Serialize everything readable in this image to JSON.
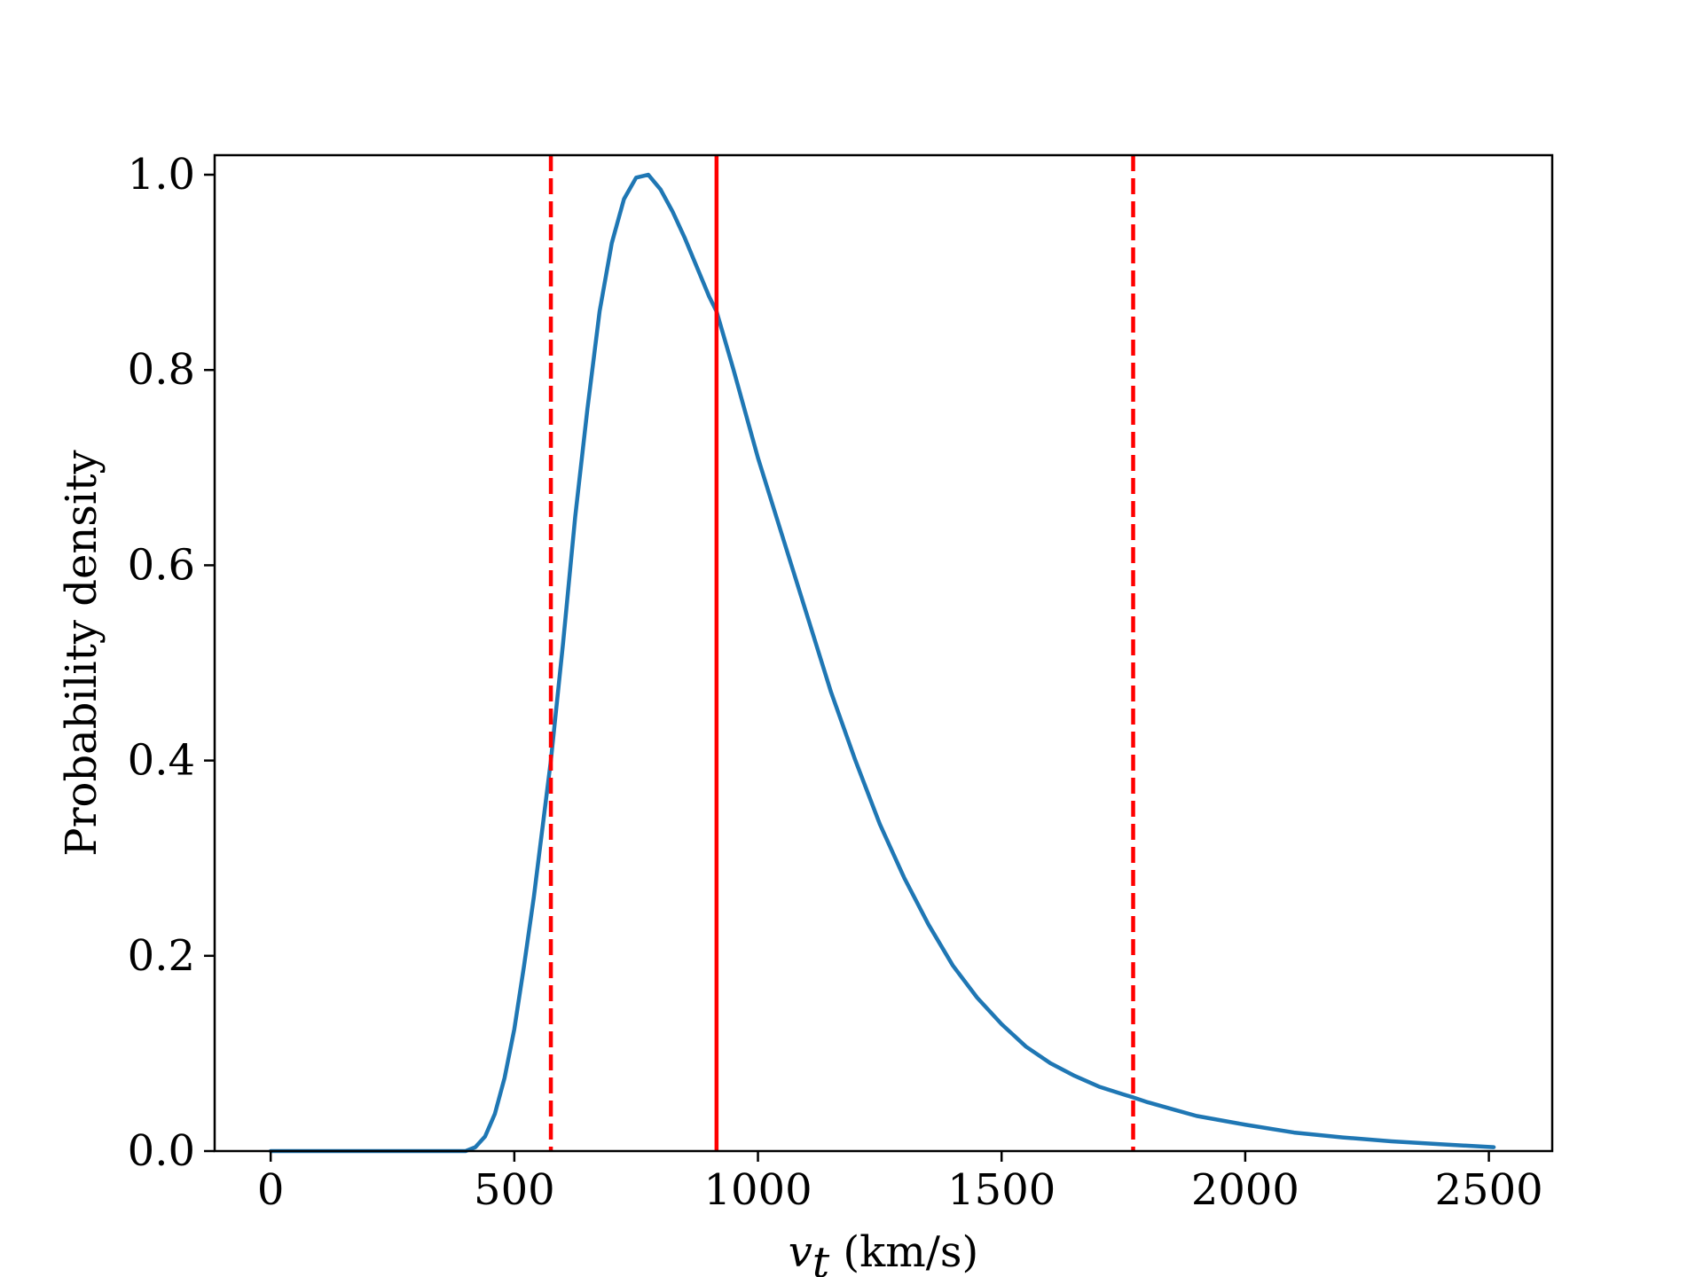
{
  "chart_data": {
    "type": "line",
    "title": "",
    "xlabel_symbol": "v",
    "xlabel_subscript": "t",
    "xlabel_units": " (km/s)",
    "ylabel": "Probability density",
    "xlim": [
      -115,
      2630
    ],
    "ylim": [
      0.0,
      1.02
    ],
    "xticks": [
      0,
      500,
      1000,
      1500,
      2000,
      2500
    ],
    "yticks": [
      0.0,
      0.2,
      0.4,
      0.6,
      0.8,
      1.0
    ],
    "xtick_labels": [
      "0",
      "500",
      "1000",
      "1500",
      "2000",
      "2500"
    ],
    "ytick_labels": [
      "0.0",
      "0.2",
      "0.4",
      "0.6",
      "0.8",
      "1.0"
    ],
    "grid": false,
    "series": [
      {
        "color": "#1f77b4",
        "x": [
          0,
          100,
          200,
          300,
          350,
          400,
          420,
          440,
          460,
          480,
          500,
          520,
          540,
          560,
          575,
          600,
          625,
          650,
          675,
          700,
          725,
          750,
          775,
          800,
          825,
          850,
          875,
          900,
          915,
          950,
          1000,
          1050,
          1100,
          1150,
          1200,
          1250,
          1300,
          1350,
          1400,
          1450,
          1500,
          1550,
          1600,
          1650,
          1700,
          1750,
          1770,
          1800,
          1850,
          1900,
          2000,
          2100,
          2200,
          2300,
          2400,
          2510
        ],
        "y": [
          0.0,
          0.0,
          0.0,
          0.0,
          0.0,
          0.0,
          0.004,
          0.015,
          0.038,
          0.075,
          0.125,
          0.19,
          0.26,
          0.34,
          0.4,
          0.52,
          0.65,
          0.76,
          0.86,
          0.93,
          0.975,
          0.997,
          1.0,
          0.985,
          0.962,
          0.935,
          0.905,
          0.875,
          0.86,
          0.8,
          0.71,
          0.63,
          0.55,
          0.47,
          0.4,
          0.335,
          0.28,
          0.232,
          0.19,
          0.157,
          0.13,
          0.107,
          0.09,
          0.077,
          0.066,
          0.058,
          0.055,
          0.05,
          0.043,
          0.036,
          0.027,
          0.019,
          0.014,
          0.01,
          0.007,
          0.004
        ]
      }
    ],
    "vlines": [
      {
        "x": 575,
        "style": "dashed",
        "color": "#ff0000"
      },
      {
        "x": 915,
        "style": "solid",
        "color": "#ff0000"
      },
      {
        "x": 1770,
        "style": "dashed",
        "color": "#ff0000"
      }
    ]
  }
}
